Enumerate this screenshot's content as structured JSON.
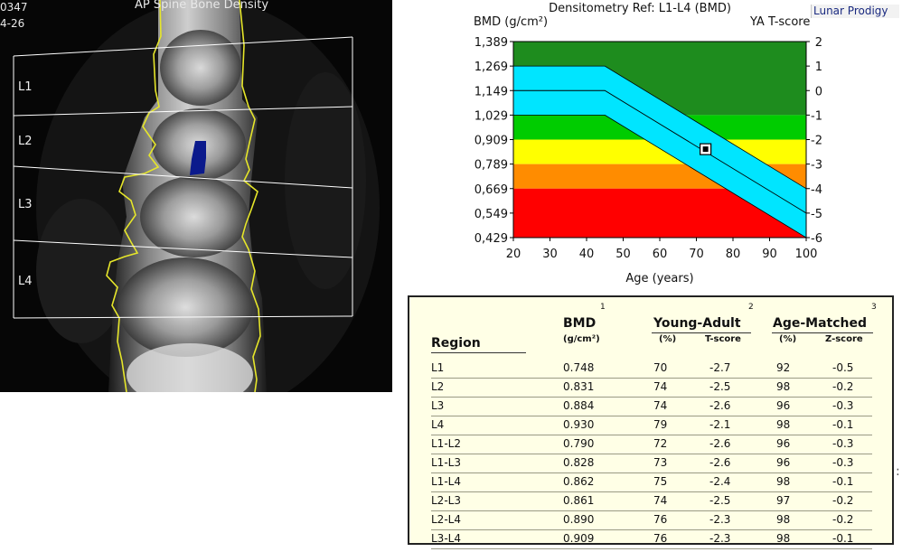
{
  "scan": {
    "title": "AP Spine Bone Density",
    "id_fragment": "0347",
    "date_fragment": "4-26",
    "vertebrae": [
      "L1",
      "L2",
      "L3",
      "L4"
    ]
  },
  "brand": "Lunar Prodigy",
  "chart_data": {
    "type": "area",
    "title": "Densitometry Ref: L1-L4 (BMD)",
    "ylabel": "BMD (g/cm²)",
    "ylabel_right": "YA T-score",
    "xlabel": "Age (years)",
    "x_ticks": [
      20,
      30,
      40,
      50,
      60,
      70,
      80,
      90,
      100
    ],
    "y_ticks": [
      "1,389",
      "1,269",
      "1,149",
      "1,029",
      "0,909",
      "0,789",
      "0,669",
      "0,549",
      "0,429"
    ],
    "y_tick_values": [
      1.389,
      1.269,
      1.149,
      1.029,
      0.909,
      0.789,
      0.669,
      0.549,
      0.429
    ],
    "t_ticks": [
      "2",
      "1",
      "0",
      "-1",
      "-2",
      "-3",
      "-4",
      "-5",
      "-6"
    ],
    "xlim": [
      20,
      100
    ],
    "ylim": [
      0.429,
      1.389
    ],
    "zones": [
      {
        "from": 1.029,
        "to": 1.389,
        "color": "#1e8c1e"
      },
      {
        "from": 0.909,
        "to": 1.029,
        "color": "#00cc00"
      },
      {
        "from": 0.789,
        "to": 0.909,
        "color": "#ffff00"
      },
      {
        "from": 0.669,
        "to": 0.789,
        "color": "#ff8c00"
      },
      {
        "from": 0.429,
        "to": 0.669,
        "color": "#ff0000"
      }
    ],
    "reference_band": {
      "color": "#00e5ff",
      "x": [
        20,
        45,
        100
      ],
      "upper": [
        1.269,
        1.269,
        0.669
      ],
      "mean": [
        1.149,
        1.149,
        0.549
      ],
      "lower": [
        1.029,
        1.029,
        0.429
      ]
    },
    "patient_point": {
      "x": 72.5,
      "y": 0.862
    }
  },
  "table": {
    "col_numbers": [
      "1",
      "2",
      "3"
    ],
    "headers": {
      "region": "Region",
      "bmd": "BMD",
      "bmd_unit": "(g/cm²)",
      "young_adult": "Young-Adult",
      "age_matched": "Age-Matched",
      "pct": "(%)",
      "t_score": "T-score",
      "z_score": "Z-score"
    },
    "rows": [
      {
        "region": "L1",
        "bmd": "0.748",
        "ya_pct": "70",
        "t": "-2.7",
        "am_pct": "92",
        "z": "-0.5"
      },
      {
        "region": "L2",
        "bmd": "0.831",
        "ya_pct": "74",
        "t": "-2.5",
        "am_pct": "98",
        "z": "-0.2"
      },
      {
        "region": "L3",
        "bmd": "0.884",
        "ya_pct": "74",
        "t": "-2.6",
        "am_pct": "96",
        "z": "-0.3"
      },
      {
        "region": "L4",
        "bmd": "0.930",
        "ya_pct": "79",
        "t": "-2.1",
        "am_pct": "98",
        "z": "-0.1"
      },
      {
        "region": "L1-L2",
        "bmd": "0.790",
        "ya_pct": "72",
        "t": "-2.6",
        "am_pct": "96",
        "z": "-0.3"
      },
      {
        "region": "L1-L3",
        "bmd": "0.828",
        "ya_pct": "73",
        "t": "-2.6",
        "am_pct": "96",
        "z": "-0.3"
      },
      {
        "region": "L1-L4",
        "bmd": "0.862",
        "ya_pct": "75",
        "t": "-2.4",
        "am_pct": "98",
        "z": "-0.1"
      },
      {
        "region": "L2-L3",
        "bmd": "0.861",
        "ya_pct": "74",
        "t": "-2.5",
        "am_pct": "97",
        "z": "-0.2"
      },
      {
        "region": "L2-L4",
        "bmd": "0.890",
        "ya_pct": "76",
        "t": "-2.3",
        "am_pct": "98",
        "z": "-0.2"
      },
      {
        "region": "L3-L4",
        "bmd": "0.909",
        "ya_pct": "76",
        "t": "-2.3",
        "am_pct": "98",
        "z": "-0.1"
      }
    ]
  },
  "edge_mark": ":"
}
